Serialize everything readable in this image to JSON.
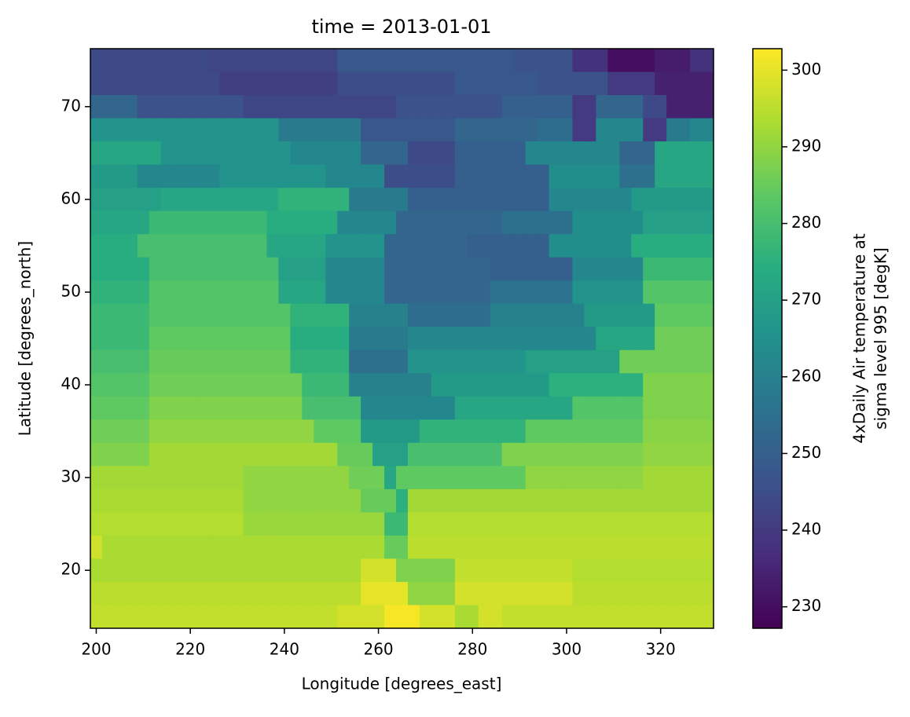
{
  "chart_data": {
    "type": "heatmap",
    "title": "time = 2013-01-01",
    "xlabel": "Longitude [degrees_east]",
    "ylabel": "Latitude [degrees_north]",
    "x": [
      200,
      202.5,
      205,
      207.5,
      210,
      212.5,
      215,
      217.5,
      220,
      222.5,
      225,
      227.5,
      230,
      232.5,
      235,
      237.5,
      240,
      242.5,
      245,
      247.5,
      250,
      252.5,
      255,
      257.5,
      260,
      262.5,
      265,
      267.5,
      270,
      272.5,
      275,
      277.5,
      280,
      282.5,
      285,
      287.5,
      290,
      292.5,
      295,
      297.5,
      300,
      302.5,
      305,
      307.5,
      310,
      312.5,
      315,
      317.5,
      320,
      322.5,
      325,
      327.5,
      330
    ],
    "y": [
      75,
      72.5,
      70,
      67.5,
      65,
      62.5,
      60,
      57.5,
      55,
      52.5,
      50,
      47.5,
      45,
      42.5,
      40,
      37.5,
      35,
      32.5,
      30,
      27.5,
      25,
      22.5,
      20,
      17.5,
      15
    ],
    "values": [
      [
        244,
        244,
        244,
        244,
        244,
        244,
        244,
        244,
        244,
        244,
        243,
        243,
        243,
        243,
        243,
        243,
        243,
        243,
        243,
        243,
        243,
        248,
        248,
        248,
        248,
        248,
        248,
        248,
        248,
        248,
        248,
        248,
        248,
        248,
        248,
        248,
        246,
        246,
        246,
        246,
        246,
        238,
        238,
        238,
        230,
        230,
        230,
        230,
        233,
        233,
        233,
        238,
        238
      ],
      [
        244,
        244,
        244,
        244,
        244,
        244,
        244,
        244,
        244,
        244,
        244,
        241,
        241,
        241,
        241,
        241,
        241,
        241,
        241,
        241,
        241,
        245,
        245,
        245,
        245,
        245,
        245,
        245,
        245,
        245,
        245,
        248,
        248,
        248,
        248,
        248,
        248,
        248,
        246,
        246,
        246,
        246,
        246,
        246,
        240,
        240,
        240,
        240,
        234,
        234,
        234,
        234,
        234
      ],
      [
        252,
        252,
        252,
        252,
        246,
        246,
        246,
        246,
        246,
        246,
        246,
        246,
        246,
        243,
        243,
        243,
        243,
        243,
        243,
        243,
        243,
        243,
        243,
        243,
        243,
        243,
        246,
        246,
        246,
        246,
        246,
        246,
        246,
        246,
        246,
        250,
        250,
        250,
        250,
        250,
        250,
        240,
        240,
        252,
        252,
        252,
        252,
        244,
        244,
        234,
        234,
        234,
        234
      ],
      [
        266,
        266,
        266,
        266,
        266,
        266,
        266,
        266,
        266,
        266,
        266,
        266,
        266,
        266,
        266,
        266,
        258,
        258,
        258,
        258,
        258,
        258,
        258,
        248,
        248,
        248,
        248,
        248,
        248,
        248,
        248,
        252,
        252,
        252,
        252,
        252,
        252,
        252,
        254,
        254,
        254,
        240,
        240,
        262,
        262,
        262,
        262,
        240,
        240,
        258,
        258,
        262,
        262
      ],
      [
        272,
        272,
        272,
        272,
        272,
        272,
        266,
        266,
        266,
        266,
        266,
        266,
        266,
        266,
        266,
        266,
        266,
        262,
        262,
        262,
        262,
        262,
        262,
        252,
        252,
        252,
        252,
        244,
        244,
        244,
        244,
        250,
        250,
        250,
        250,
        250,
        250,
        262,
        262,
        262,
        262,
        262,
        262,
        262,
        262,
        252,
        252,
        252,
        272,
        272,
        272,
        272,
        272
      ],
      [
        268,
        268,
        268,
        268,
        262,
        262,
        262,
        262,
        262,
        262,
        262,
        266,
        266,
        266,
        266,
        266,
        266,
        266,
        266,
        266,
        262,
        262,
        262,
        262,
        262,
        245,
        245,
        245,
        245,
        245,
        245,
        250,
        250,
        250,
        250,
        250,
        250,
        250,
        250,
        264,
        264,
        264,
        264,
        264,
        264,
        255,
        255,
        255,
        272,
        272,
        272,
        272,
        272
      ],
      [
        270,
        270,
        270,
        270,
        270,
        270,
        272,
        272,
        272,
        272,
        272,
        272,
        272,
        272,
        272,
        272,
        276,
        276,
        276,
        276,
        276,
        276,
        258,
        258,
        258,
        258,
        258,
        250,
        250,
        250,
        250,
        250,
        250,
        250,
        250,
        250,
        250,
        250,
        250,
        262,
        262,
        262,
        262,
        262,
        262,
        262,
        268,
        268,
        268,
        268,
        268,
        268,
        268
      ],
      [
        272,
        272,
        272,
        272,
        272,
        278,
        278,
        278,
        278,
        278,
        278,
        278,
        278,
        278,
        278,
        274,
        274,
        274,
        274,
        274,
        274,
        262,
        262,
        262,
        262,
        262,
        252,
        252,
        252,
        252,
        252,
        252,
        252,
        252,
        252,
        255,
        255,
        255,
        255,
        255,
        255,
        264,
        264,
        264,
        264,
        264,
        264,
        270,
        270,
        270,
        270,
        270,
        270
      ],
      [
        274,
        274,
        274,
        274,
        280,
        280,
        280,
        280,
        280,
        280,
        280,
        280,
        280,
        280,
        280,
        272,
        272,
        272,
        272,
        272,
        266,
        266,
        266,
        266,
        266,
        252,
        252,
        252,
        252,
        252,
        252,
        252,
        250,
        250,
        250,
        250,
        250,
        250,
        250,
        264,
        264,
        264,
        264,
        264,
        264,
        264,
        274,
        274,
        274,
        274,
        274,
        274,
        274
      ],
      [
        274,
        274,
        274,
        274,
        274,
        280,
        280,
        280,
        280,
        280,
        280,
        280,
        280,
        280,
        280,
        280,
        270,
        270,
        270,
        270,
        262,
        262,
        262,
        262,
        262,
        252,
        252,
        252,
        252,
        252,
        252,
        252,
        252,
        252,
        250,
        250,
        250,
        250,
        250,
        250,
        250,
        262,
        262,
        262,
        262,
        262,
        262,
        278,
        278,
        278,
        278,
        278,
        278
      ],
      [
        276,
        276,
        276,
        276,
        276,
        282,
        282,
        282,
        282,
        282,
        282,
        282,
        282,
        282,
        282,
        282,
        272,
        272,
        272,
        272,
        262,
        262,
        262,
        262,
        262,
        252,
        252,
        252,
        252,
        252,
        252,
        252,
        252,
        252,
        256,
        256,
        256,
        256,
        256,
        256,
        256,
        266,
        266,
        266,
        266,
        266,
        266,
        282,
        282,
        282,
        282,
        282,
        282
      ],
      [
        278,
        278,
        278,
        278,
        278,
        282,
        282,
        282,
        282,
        282,
        282,
        282,
        282,
        282,
        282,
        282,
        282,
        276,
        276,
        276,
        276,
        276,
        260,
        260,
        260,
        260,
        260,
        254,
        254,
        254,
        254,
        254,
        254,
        254,
        260,
        260,
        260,
        260,
        260,
        260,
        260,
        260,
        268,
        268,
        268,
        268,
        268,
        268,
        284,
        284,
        284,
        284,
        284
      ],
      [
        278,
        278,
        278,
        278,
        278,
        284,
        284,
        284,
        284,
        284,
        284,
        284,
        284,
        284,
        284,
        284,
        284,
        274,
        274,
        274,
        274,
        274,
        258,
        258,
        258,
        258,
        258,
        262,
        262,
        262,
        262,
        262,
        262,
        262,
        262,
        262,
        262,
        262,
        262,
        262,
        262,
        262,
        262,
        272,
        272,
        272,
        272,
        272,
        286,
        286,
        286,
        286,
        286
      ],
      [
        280,
        280,
        280,
        280,
        280,
        285,
        285,
        285,
        285,
        285,
        285,
        285,
        285,
        285,
        285,
        285,
        285,
        276,
        276,
        276,
        276,
        276,
        255,
        255,
        255,
        255,
        255,
        266,
        266,
        266,
        266,
        266,
        266,
        266,
        266,
        266,
        266,
        270,
        270,
        270,
        270,
        270,
        270,
        270,
        270,
        286,
        286,
        286,
        286,
        286,
        286,
        286,
        286
      ],
      [
        282,
        282,
        282,
        282,
        282,
        286,
        286,
        286,
        286,
        286,
        286,
        286,
        286,
        286,
        286,
        286,
        286,
        286,
        278,
        278,
        278,
        278,
        260,
        260,
        260,
        260,
        260,
        260,
        260,
        268,
        268,
        268,
        268,
        268,
        268,
        268,
        268,
        268,
        268,
        275,
        275,
        275,
        275,
        275,
        275,
        275,
        275,
        288,
        288,
        288,
        288,
        288,
        288
      ],
      [
        284,
        284,
        284,
        284,
        284,
        288,
        288,
        288,
        288,
        288,
        288,
        288,
        288,
        288,
        288,
        288,
        288,
        288,
        280,
        280,
        280,
        280,
        280,
        262,
        262,
        262,
        262,
        262,
        262,
        262,
        262,
        272,
        272,
        272,
        272,
        272,
        272,
        272,
        272,
        272,
        272,
        282,
        282,
        282,
        282,
        282,
        282,
        288,
        288,
        288,
        288,
        288,
        288
      ],
      [
        286,
        286,
        286,
        286,
        286,
        290,
        290,
        290,
        290,
        290,
        290,
        290,
        290,
        290,
        290,
        290,
        290,
        290,
        290,
        284,
        284,
        284,
        284,
        268,
        268,
        268,
        268,
        268,
        276,
        276,
        276,
        276,
        276,
        276,
        276,
        276,
        276,
        284,
        284,
        284,
        284,
        284,
        284,
        284,
        284,
        284,
        284,
        289,
        289,
        289,
        289,
        289,
        289
      ],
      [
        288,
        288,
        288,
        288,
        288,
        292,
        292,
        292,
        292,
        292,
        292,
        292,
        292,
        292,
        292,
        292,
        292,
        292,
        292,
        292,
        292,
        285,
        285,
        285,
        270,
        270,
        270,
        280,
        280,
        280,
        280,
        280,
        280,
        280,
        280,
        288,
        288,
        288,
        288,
        288,
        288,
        288,
        288,
        288,
        288,
        288,
        288,
        290,
        290,
        290,
        290,
        290,
        290
      ],
      [
        292,
        292,
        292,
        292,
        292,
        292,
        292,
        292,
        292,
        292,
        292,
        292,
        292,
        290,
        290,
        290,
        290,
        290,
        290,
        290,
        290,
        290,
        286,
        286,
        286,
        272,
        284,
        284,
        284,
        284,
        284,
        284,
        284,
        284,
        284,
        284,
        284,
        290,
        290,
        290,
        290,
        290,
        290,
        290,
        290,
        290,
        290,
        292,
        292,
        292,
        292,
        292,
        292
      ],
      [
        293,
        293,
        293,
        293,
        293,
        293,
        293,
        293,
        293,
        293,
        293,
        293,
        293,
        290,
        290,
        290,
        290,
        290,
        290,
        290,
        290,
        290,
        290,
        285,
        285,
        285,
        275,
        292,
        292,
        292,
        292,
        292,
        292,
        292,
        292,
        292,
        292,
        292,
        292,
        292,
        292,
        292,
        292,
        292,
        292,
        292,
        292,
        292,
        292,
        292,
        292,
        292,
        292
      ],
      [
        294,
        294,
        294,
        294,
        294,
        294,
        294,
        294,
        294,
        294,
        294,
        294,
        294,
        291,
        291,
        291,
        291,
        291,
        291,
        291,
        291,
        291,
        291,
        291,
        291,
        278,
        278,
        294,
        294,
        294,
        294,
        294,
        294,
        294,
        294,
        294,
        294,
        294,
        294,
        294,
        294,
        294,
        294,
        294,
        294,
        294,
        294,
        294,
        294,
        294,
        294,
        294,
        294
      ],
      [
        297,
        293,
        293,
        293,
        293,
        293,
        293,
        293,
        293,
        293,
        293,
        293,
        293,
        293,
        293,
        293,
        293,
        293,
        293,
        293,
        293,
        293,
        293,
        293,
        293,
        285,
        285,
        295,
        295,
        295,
        295,
        295,
        295,
        295,
        295,
        295,
        295,
        295,
        295,
        295,
        295,
        295,
        295,
        295,
        295,
        295,
        295,
        295,
        295,
        295,
        295,
        295,
        295
      ],
      [
        293,
        293,
        293,
        293,
        293,
        293,
        293,
        293,
        293,
        293,
        293,
        293,
        293,
        293,
        293,
        293,
        293,
        293,
        293,
        293,
        293,
        293,
        293,
        298,
        298,
        298,
        288,
        288,
        288,
        288,
        288,
        296,
        296,
        296,
        296,
        296,
        296,
        296,
        296,
        296,
        296,
        294,
        294,
        294,
        294,
        294,
        294,
        294,
        294,
        294,
        294,
        294,
        294
      ],
      [
        295,
        295,
        295,
        295,
        295,
        295,
        295,
        295,
        295,
        295,
        295,
        295,
        295,
        295,
        295,
        295,
        295,
        295,
        295,
        295,
        295,
        295,
        295,
        300,
        300,
        300,
        300,
        290,
        290,
        290,
        290,
        298,
        298,
        298,
        298,
        298,
        298,
        298,
        298,
        298,
        298,
        295,
        295,
        295,
        295,
        295,
        295,
        295,
        295,
        295,
        295,
        295,
        295
      ],
      [
        296,
        296,
        296,
        296,
        296,
        296,
        296,
        296,
        296,
        296,
        296,
        296,
        296,
        296,
        296,
        296,
        296,
        296,
        296,
        296,
        296,
        298,
        298,
        298,
        298,
        302,
        302,
        302,
        298,
        298,
        298,
        293,
        293,
        298,
        298,
        296,
        296,
        296,
        296,
        296,
        296,
        296,
        296,
        296,
        296,
        296,
        296,
        296,
        296,
        296,
        296,
        296,
        296
      ]
    ],
    "xlim": [
      198.75,
      331.25
    ],
    "ylim": [
      13.75,
      76.25
    ],
    "xticks": [
      200,
      220,
      240,
      260,
      280,
      300,
      320
    ],
    "yticks": [
      20,
      30,
      40,
      50,
      60,
      70
    ],
    "colormap": "viridis",
    "colorbar": {
      "label": [
        "4xDaily Air temperature at",
        "sigma level 995 [degK]"
      ],
      "clim": [
        227.2,
        302.8
      ],
      "ticks": [
        230,
        240,
        250,
        260,
        270,
        280,
        290,
        300
      ]
    }
  }
}
